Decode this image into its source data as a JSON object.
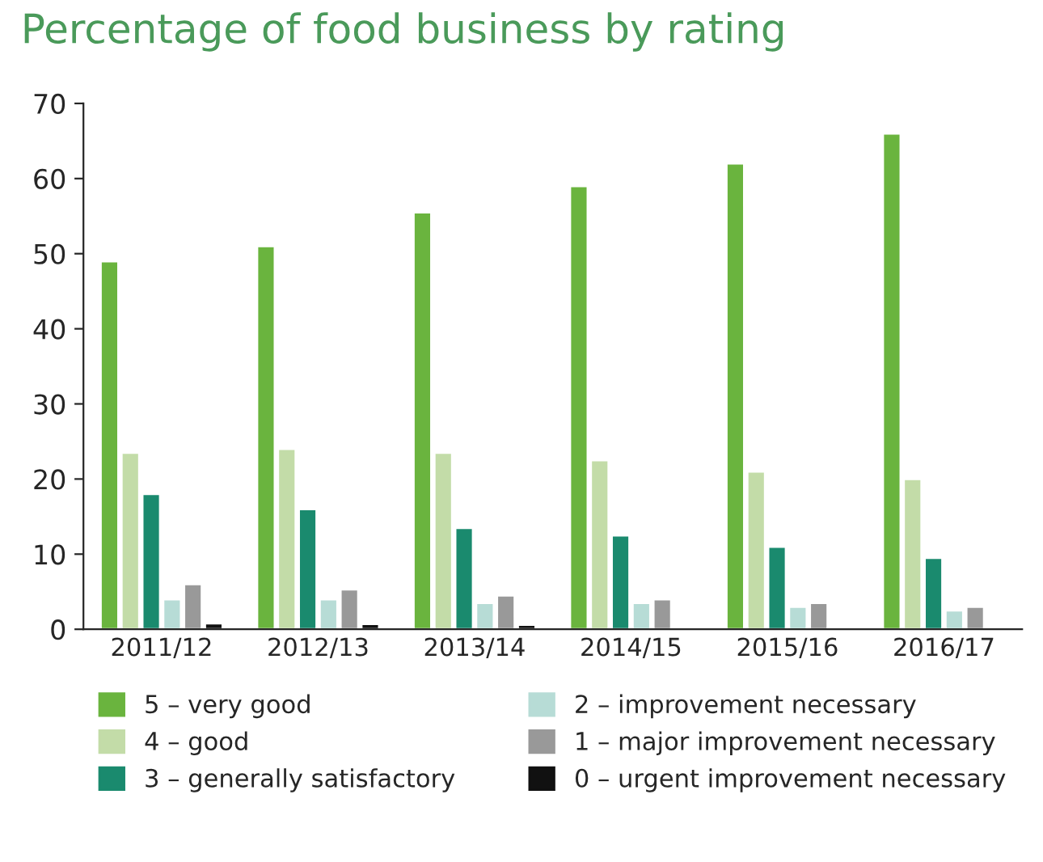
{
  "chart_data": {
    "type": "bar",
    "title": "Percentage of food business by rating",
    "categories": [
      "2011/12",
      "2012/13",
      "2013/14",
      "2014/15",
      "2015/16",
      "2016/17"
    ],
    "series": [
      {
        "name": "5 – very good",
        "color": "#6ab43e",
        "values": [
          49,
          51,
          55.5,
          59,
          62,
          66
        ]
      },
      {
        "name": "4 – good",
        "color": "#c3dca8",
        "values": [
          23.5,
          24,
          23.5,
          22.5,
          21,
          20
        ]
      },
      {
        "name": "3 – generally satisfactory",
        "color": "#1a8a6e",
        "values": [
          18,
          16,
          13.5,
          12.5,
          11,
          9.5
        ]
      },
      {
        "name": "2 – improvement necessary",
        "color": "#b7dcd6",
        "values": [
          4,
          4,
          3.5,
          3.5,
          3,
          2.5
        ]
      },
      {
        "name": "1 – major improvement necessary",
        "color": "#999999",
        "values": [
          6,
          5.3,
          4.5,
          4,
          3.5,
          3
        ]
      },
      {
        "name": "0 – urgent improvement necessary",
        "color": "#111111",
        "values": [
          0.8,
          0.7,
          0.6,
          0.3,
          0.3,
          0.2
        ]
      }
    ],
    "ylim": [
      0,
      70
    ],
    "yticks": [
      0,
      10,
      20,
      30,
      40,
      50,
      60,
      70
    ],
    "grid": false,
    "legend": "bottom"
  }
}
